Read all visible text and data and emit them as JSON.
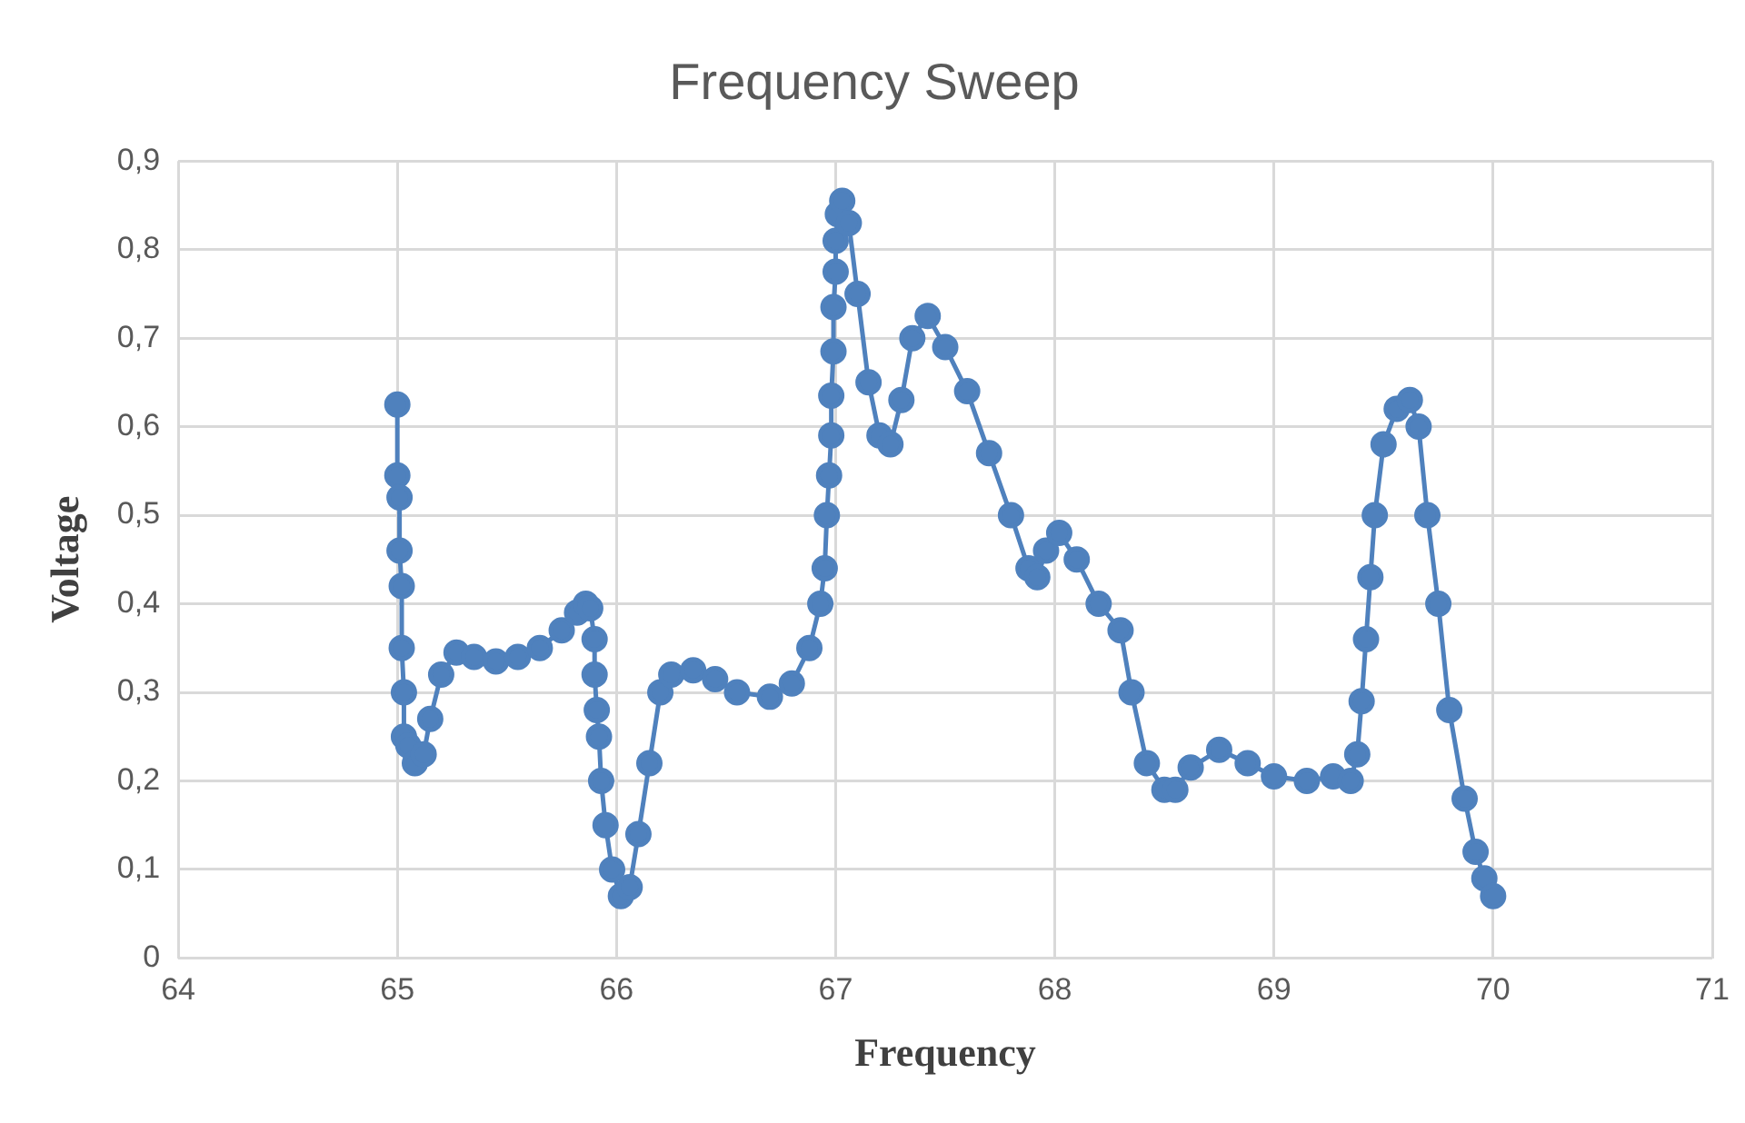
{
  "chart_data": {
    "type": "line",
    "title": "Frequency Sweep",
    "xlabel": "Frequency",
    "ylabel": "Voltage",
    "xlim": [
      64,
      71
    ],
    "xticks": [
      64,
      65,
      66,
      67,
      68,
      69,
      70,
      71
    ],
    "ylim": [
      0,
      0.9
    ],
    "yticks": [
      0,
      {
        "value": 0.1,
        "label": "0,1"
      },
      {
        "value": 0.2,
        "label": "0,2"
      },
      {
        "value": 0.3,
        "label": "0,3"
      },
      {
        "value": 0.4,
        "label": "0,4"
      },
      {
        "value": 0.5,
        "label": "0,5"
      },
      {
        "value": 0.6,
        "label": "0,6"
      },
      {
        "value": 0.7,
        "label": "0,7"
      },
      {
        "value": 0.8,
        "label": "0,8"
      },
      {
        "value": 0.9,
        "label": "0,9"
      }
    ],
    "grid": true,
    "marker": "circle",
    "line_style": "solid",
    "series": [
      {
        "color": "#4f81bd",
        "x": [
          65.0,
          65.0,
          65.01,
          65.01,
          65.02,
          65.02,
          65.03,
          65.03,
          65.05,
          65.08,
          65.12,
          65.15,
          65.2,
          65.27,
          65.35,
          65.45,
          65.55,
          65.65,
          65.75,
          65.82,
          65.86,
          65.88,
          65.9,
          65.9,
          65.91,
          65.92,
          65.93,
          65.95,
          65.98,
          66.02,
          66.06,
          66.1,
          66.15,
          66.2,
          66.25,
          66.35,
          66.45,
          66.55,
          66.7,
          66.8,
          66.88,
          66.93,
          66.95,
          66.96,
          66.97,
          66.98,
          66.98,
          66.99,
          66.99,
          67.0,
          67.0,
          67.01,
          67.03,
          67.06,
          67.1,
          67.15,
          67.2,
          67.25,
          67.3,
          67.35,
          67.42,
          67.5,
          67.6,
          67.7,
          67.8,
          67.88,
          67.92,
          67.96,
          68.02,
          68.1,
          68.2,
          68.3,
          68.35,
          68.42,
          68.5,
          68.55,
          68.62,
          68.75,
          68.88,
          69.0,
          69.15,
          69.27,
          69.35,
          69.38,
          69.4,
          69.42,
          69.44,
          69.46,
          69.5,
          69.56,
          69.62,
          69.66,
          69.7,
          69.75,
          69.8,
          69.87,
          69.92,
          69.96,
          70.0
        ],
        "values": [
          0.625,
          0.545,
          0.52,
          0.46,
          0.42,
          0.35,
          0.3,
          0.25,
          0.24,
          0.22,
          0.23,
          0.27,
          0.32,
          0.345,
          0.34,
          0.335,
          0.34,
          0.35,
          0.37,
          0.39,
          0.4,
          0.395,
          0.36,
          0.32,
          0.28,
          0.25,
          0.2,
          0.15,
          0.1,
          0.07,
          0.08,
          0.14,
          0.22,
          0.3,
          0.32,
          0.325,
          0.315,
          0.3,
          0.295,
          0.31,
          0.35,
          0.4,
          0.44,
          0.5,
          0.545,
          0.59,
          0.635,
          0.685,
          0.735,
          0.775,
          0.81,
          0.84,
          0.855,
          0.83,
          0.75,
          0.65,
          0.59,
          0.58,
          0.63,
          0.7,
          0.725,
          0.69,
          0.64,
          0.57,
          0.5,
          0.44,
          0.43,
          0.46,
          0.48,
          0.45,
          0.4,
          0.37,
          0.3,
          0.22,
          0.19,
          0.19,
          0.215,
          0.235,
          0.22,
          0.205,
          0.2,
          0.205,
          0.2,
          0.23,
          0.29,
          0.36,
          0.43,
          0.5,
          0.58,
          0.62,
          0.63,
          0.6,
          0.5,
          0.4,
          0.28,
          0.18,
          0.12,
          0.09,
          0.07
        ]
      }
    ]
  }
}
